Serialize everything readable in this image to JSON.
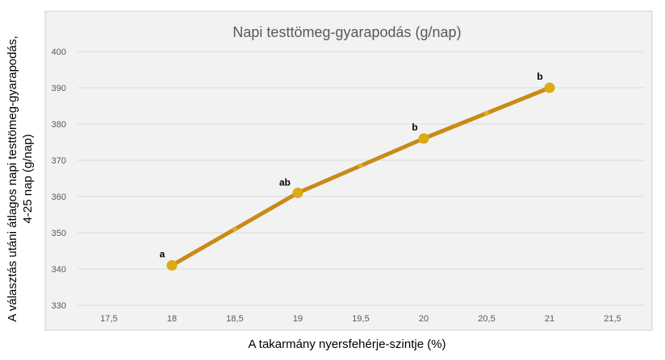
{
  "chart_data": {
    "type": "line",
    "title": "Napi testtömeg-gyarapodás (g/nap)",
    "xlabel": "A takarmány nyersfehérje-szintje (%)",
    "ylabel_line1": "A választás utáni átlagos napi testtömeg-gyarapodás,",
    "ylabel_line2": "4-25 nap (g/nap)",
    "xlim": [
      17.25,
      21.75
    ],
    "ylim": [
      325,
      405
    ],
    "x_ticks": [
      17.5,
      18,
      18.5,
      19,
      19.5,
      20,
      20.5,
      21,
      21.5
    ],
    "x_tick_labels": [
      "17,5",
      "18",
      "18,5",
      "19",
      "19,5",
      "20",
      "20,5",
      "21",
      "21,5"
    ],
    "y_ticks": [
      330,
      340,
      350,
      360,
      370,
      380,
      390,
      400
    ],
    "y_tick_labels": [
      "330",
      "340",
      "350",
      "360",
      "370",
      "380",
      "390",
      "400"
    ],
    "grid": "horizontal",
    "legend": "none",
    "series": [
      {
        "x": [
          18,
          19,
          20,
          21
        ],
        "y": [
          341,
          361,
          376,
          390
        ],
        "labels": [
          "a",
          "ab",
          "b",
          "b"
        ],
        "color": "#C98A17",
        "marker_color": "#DDAA16",
        "midpoint_color": "#E0B020"
      }
    ],
    "background_color": "#F2F2F2",
    "grid_color": "#D9D9D9"
  }
}
